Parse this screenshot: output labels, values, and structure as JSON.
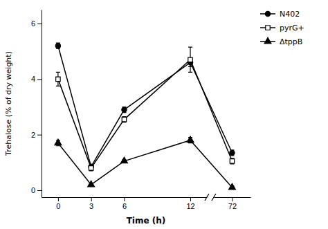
{
  "chart_data": {
    "type": "line",
    "x": [
      0,
      3,
      6,
      12,
      72
    ],
    "series": [
      {
        "name": "N402",
        "color": "#000000",
        "marker": "circle",
        "values": [
          5.2,
          0.85,
          2.9,
          4.6,
          1.35
        ],
        "errors": [
          0.1,
          0.05,
          0.1,
          0.15,
          0.1
        ]
      },
      {
        "name": "pyrG+",
        "color": "#000000",
        "marker": "square-open",
        "values": [
          4.0,
          0.8,
          2.55,
          4.7,
          1.05
        ],
        "errors": [
          0.25,
          0.1,
          0.1,
          0.45,
          0.1
        ]
      },
      {
        "name": "ΔtppB",
        "color": "#000000",
        "marker": "triangle",
        "values": [
          1.7,
          0.2,
          1.05,
          1.8,
          0.1
        ],
        "errors": [
          0.1,
          0.05,
          0.05,
          0.1,
          0.05
        ]
      }
    ],
    "xlabel": "Time (h)",
    "ylabel": "Trehalose (% of dry weight)",
    "xlim": [
      [
        -1.5,
        13.5
      ],
      [
        68.5,
        75.5
      ]
    ],
    "xticks": [
      0,
      3,
      6,
      12,
      72
    ],
    "ylim": [
      -0.25,
      6.5
    ],
    "yticks": [
      0,
      2,
      4,
      6
    ],
    "grid": false,
    "legend": "upper right"
  }
}
